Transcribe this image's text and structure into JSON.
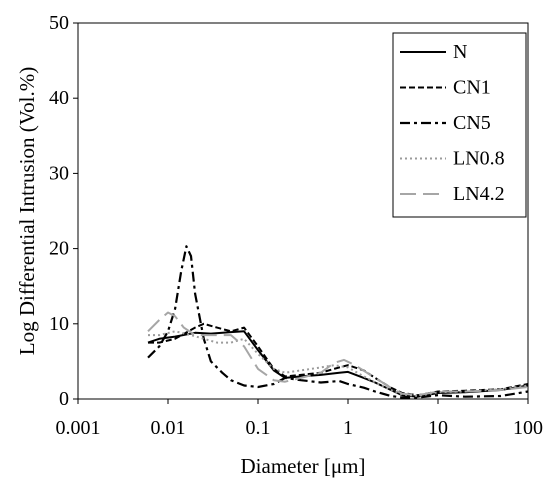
{
  "chart_data": {
    "type": "line",
    "title": "",
    "xlabel": "Diameter [μm]",
    "ylabel": "Log Differential Intrusion (Vol.%)",
    "x_scale": "log",
    "xlim": [
      0.001,
      100
    ],
    "ylim": [
      0,
      50
    ],
    "x_ticks": [
      0.001,
      0.01,
      0.1,
      1,
      10,
      100
    ],
    "x_tick_labels": [
      "0.001",
      "0.01",
      "0.1",
      "1",
      "10",
      "100"
    ],
    "y_ticks": [
      0,
      10,
      20,
      30,
      40,
      50
    ],
    "y_tick_labels": [
      "0",
      "10",
      "20",
      "30",
      "40",
      "50"
    ],
    "grid": false,
    "legend_position": "top-right",
    "series": [
      {
        "name": "N",
        "color": "#000000",
        "dash": "solid",
        "points": [
          [
            0.006,
            7.5
          ],
          [
            0.008,
            8.0
          ],
          [
            0.012,
            8.3
          ],
          [
            0.02,
            8.8
          ],
          [
            0.03,
            8.7
          ],
          [
            0.05,
            8.9
          ],
          [
            0.07,
            9.0
          ],
          [
            0.1,
            6.5
          ],
          [
            0.15,
            3.8
          ],
          [
            0.2,
            2.8
          ],
          [
            0.3,
            3.0
          ],
          [
            0.5,
            3.2
          ],
          [
            0.8,
            3.5
          ],
          [
            1.0,
            3.6
          ],
          [
            1.5,
            2.8
          ],
          [
            2.0,
            2.2
          ],
          [
            3.0,
            1.2
          ],
          [
            4.0,
            0.5
          ],
          [
            6.0,
            0.3
          ],
          [
            10.0,
            0.8
          ],
          [
            20.0,
            0.9
          ],
          [
            50.0,
            1.2
          ],
          [
            100.0,
            1.8
          ]
        ]
      },
      {
        "name": "CN1",
        "color": "#000000",
        "dash": "dashed",
        "points": [
          [
            0.006,
            7.5
          ],
          [
            0.008,
            7.5
          ],
          [
            0.012,
            8.0
          ],
          [
            0.02,
            9.5
          ],
          [
            0.025,
            10.0
          ],
          [
            0.035,
            9.5
          ],
          [
            0.05,
            9.0
          ],
          [
            0.07,
            9.5
          ],
          [
            0.1,
            7.0
          ],
          [
            0.15,
            4.0
          ],
          [
            0.2,
            3.0
          ],
          [
            0.3,
            3.2
          ],
          [
            0.5,
            3.5
          ],
          [
            0.8,
            4.2
          ],
          [
            1.0,
            4.5
          ],
          [
            1.5,
            3.8
          ],
          [
            2.0,
            2.8
          ],
          [
            3.0,
            1.5
          ],
          [
            4.0,
            0.8
          ],
          [
            6.0,
            0.5
          ],
          [
            10.0,
            1.0
          ],
          [
            20.0,
            1.1
          ],
          [
            50.0,
            1.3
          ],
          [
            100.0,
            2.0
          ]
        ]
      },
      {
        "name": "CN5",
        "color": "#000000",
        "dash": "dashdot",
        "points": [
          [
            0.006,
            5.5
          ],
          [
            0.008,
            7.0
          ],
          [
            0.01,
            9.0
          ],
          [
            0.012,
            12.0
          ],
          [
            0.014,
            17.0
          ],
          [
            0.016,
            20.3
          ],
          [
            0.018,
            19.0
          ],
          [
            0.02,
            14.0
          ],
          [
            0.025,
            8.0
          ],
          [
            0.03,
            5.0
          ],
          [
            0.04,
            3.5
          ],
          [
            0.05,
            2.5
          ],
          [
            0.07,
            1.8
          ],
          [
            0.1,
            1.6
          ],
          [
            0.15,
            2.0
          ],
          [
            0.2,
            2.8
          ],
          [
            0.3,
            2.5
          ],
          [
            0.5,
            2.2
          ],
          [
            0.8,
            2.4
          ],
          [
            1.0,
            2.0
          ],
          [
            1.5,
            1.5
          ],
          [
            2.0,
            1.0
          ],
          [
            3.0,
            0.4
          ],
          [
            4.0,
            0.2
          ],
          [
            6.0,
            0.2
          ],
          [
            10.0,
            0.5
          ],
          [
            20.0,
            0.3
          ],
          [
            50.0,
            0.4
          ],
          [
            100.0,
            1.0
          ]
        ]
      },
      {
        "name": "LN0.8",
        "color": "#9b9b9b",
        "dash": "dotted",
        "points": [
          [
            0.006,
            8.5
          ],
          [
            0.008,
            8.5
          ],
          [
            0.012,
            9.0
          ],
          [
            0.018,
            8.5
          ],
          [
            0.025,
            8.0
          ],
          [
            0.035,
            7.5
          ],
          [
            0.05,
            7.5
          ],
          [
            0.07,
            8.0
          ],
          [
            0.1,
            6.0
          ],
          [
            0.15,
            4.0
          ],
          [
            0.2,
            3.5
          ],
          [
            0.3,
            3.8
          ],
          [
            0.5,
            4.2
          ],
          [
            0.7,
            4.5
          ],
          [
            1.0,
            4.2
          ],
          [
            1.5,
            3.0
          ],
          [
            2.0,
            2.2
          ],
          [
            3.0,
            1.2
          ],
          [
            4.0,
            0.6
          ],
          [
            6.0,
            0.4
          ],
          [
            10.0,
            0.9
          ],
          [
            20.0,
            1.0
          ],
          [
            50.0,
            1.3
          ],
          [
            100.0,
            1.8
          ]
        ]
      },
      {
        "name": "LN4.2",
        "color": "#a6a6a6",
        "dash": "longdash",
        "points": [
          [
            0.006,
            9.0
          ],
          [
            0.008,
            10.5
          ],
          [
            0.01,
            11.5
          ],
          [
            0.012,
            11.0
          ],
          [
            0.015,
            9.5
          ],
          [
            0.02,
            8.5
          ],
          [
            0.03,
            8.5
          ],
          [
            0.05,
            8.5
          ],
          [
            0.07,
            7.0
          ],
          [
            0.1,
            4.0
          ],
          [
            0.15,
            2.5
          ],
          [
            0.2,
            2.3
          ],
          [
            0.3,
            2.8
          ],
          [
            0.5,
            3.5
          ],
          [
            0.7,
            4.8
          ],
          [
            0.9,
            5.2
          ],
          [
            1.2,
            4.5
          ],
          [
            2.0,
            2.8
          ],
          [
            3.0,
            1.5
          ],
          [
            4.0,
            0.7
          ],
          [
            6.0,
            0.5
          ],
          [
            10.0,
            1.0
          ],
          [
            20.0,
            1.0
          ],
          [
            50.0,
            1.2
          ],
          [
            100.0,
            1.6
          ]
        ]
      }
    ]
  }
}
